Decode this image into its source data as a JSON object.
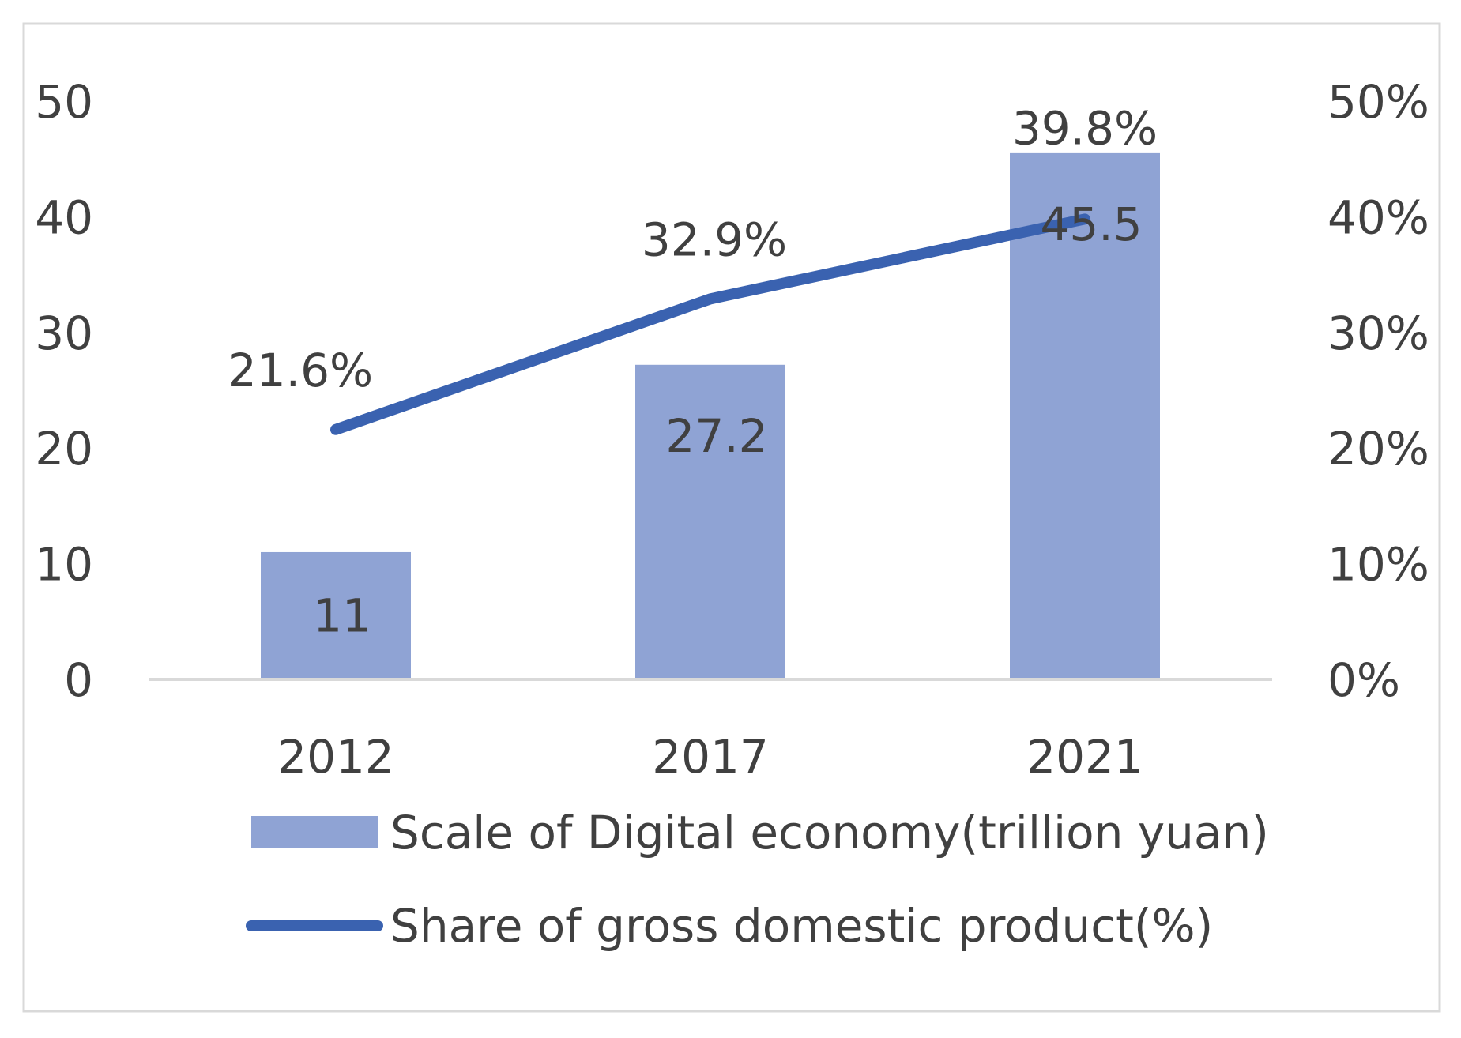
{
  "chart_data": {
    "type": "bar",
    "title": "",
    "xlabel": "",
    "ylabel": "",
    "categories": [
      "2012",
      "2017",
      "2021"
    ],
    "series": [
      {
        "name": "Scale of Digital economy(trillion yuan)",
        "type": "bar",
        "axis": "left",
        "values": [
          11,
          27.2,
          45.5
        ],
        "labels": [
          "11",
          "27.2",
          "45.5"
        ],
        "color": "#8FA3D4"
      },
      {
        "name": "Share of gross domestic product(%)",
        "type": "line",
        "axis": "right",
        "values": [
          21.6,
          32.9,
          39.8
        ],
        "labels": [
          "21.6%",
          "32.9%",
          "39.8%"
        ],
        "color": "#3A62B0"
      }
    ],
    "ylim": [
      0,
      50
    ],
    "y_ticks": [
      "0",
      "10",
      "20",
      "30",
      "40",
      "50"
    ],
    "y2lim": [
      0,
      50
    ],
    "y2_ticks": [
      "0%",
      "10%",
      "20%",
      "30%",
      "40%",
      "50%"
    ],
    "grid": false,
    "legend_position": "bottom"
  }
}
